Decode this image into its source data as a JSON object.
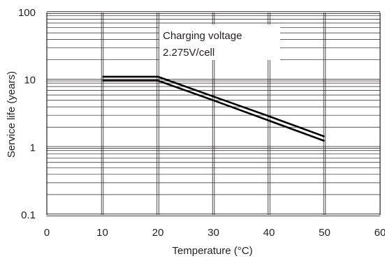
{
  "chart_data": {
    "type": "line",
    "title": "",
    "xlabel": "Temperature (°C)",
    "ylabel": "Service life (years)",
    "x_scale": "linear",
    "y_scale": "log",
    "xlim": [
      0,
      60
    ],
    "ylim": [
      0.1,
      100
    ],
    "x_ticks": [
      "0",
      "10",
      "20",
      "30",
      "40",
      "50",
      "60"
    ],
    "y_ticks": [
      "0.1",
      "1",
      "10",
      "100"
    ],
    "grid": true,
    "legend": "none",
    "annotation": {
      "lines": [
        "Charging voltage",
        "2.275V/cell"
      ],
      "position": "top-center"
    },
    "series": [
      {
        "x": [
          10,
          20,
          30,
          40,
          50
        ],
        "y": [
          11.2,
          11.2,
          5.7,
          2.9,
          1.45
        ]
      },
      {
        "x": [
          10,
          20,
          30,
          40,
          50
        ],
        "y": [
          9.8,
          9.8,
          5.0,
          2.5,
          1.25
        ]
      }
    ],
    "line_color": "#000000",
    "grid_color": "#231f20"
  }
}
